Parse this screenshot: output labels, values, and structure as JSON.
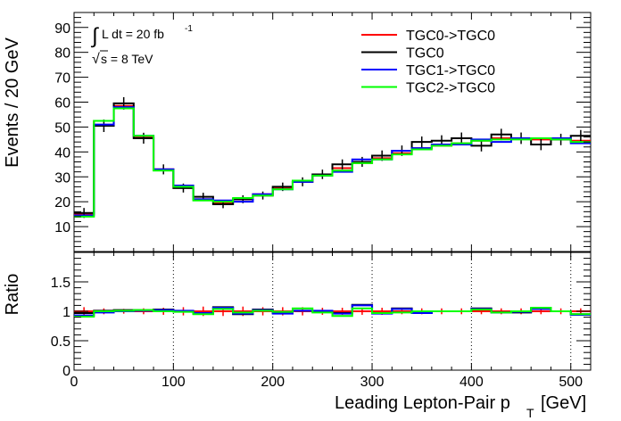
{
  "chart_data": {
    "type": "line",
    "x_edges": [
      0,
      20,
      40,
      60,
      80,
      100,
      120,
      140,
      160,
      180,
      200,
      220,
      240,
      260,
      280,
      300,
      320,
      340,
      360,
      380,
      400,
      420,
      440,
      460,
      480,
      500,
      520
    ],
    "xlim": [
      0,
      520
    ],
    "xlabel_main": "Leading Lepton-Pair p",
    "xlabel_sub": "T",
    "xlabel_unit": "[GeV]",
    "x_ticks": [
      "0",
      "100",
      "200",
      "300",
      "400",
      "500"
    ],
    "grid": "dotted vertical lines in ratio panel at x ticks and horizontal line at y = 1",
    "legend_position": "top-right",
    "annotations": {
      "lumi_integral": "∫",
      "lumi_text": "L dt = 20 fb",
      "lumi_exp": "-1",
      "sqrt_symbol": "√",
      "energy_text": "s = 8 TeV"
    },
    "top_panel": {
      "ylabel": "Events / 20 GeV",
      "ylim": [
        0,
        96
      ],
      "y_ticks": [
        "10",
        "20",
        "30",
        "40",
        "50",
        "60",
        "70",
        "80",
        "90"
      ],
      "series": [
        {
          "name": "TGC0->TGC0",
          "color": "#ff0000",
          "values": [
            15.0,
            52.5,
            58.5,
            46.0,
            33.0,
            26.0,
            21.0,
            19.5,
            21.0,
            23.0,
            25.5,
            28.0,
            30.5,
            33.5,
            35.5,
            37.5,
            39.5,
            41.5,
            42.5,
            43.5,
            44.5,
            45.5,
            45.5,
            45.0,
            45.0,
            44.5
          ]
        },
        {
          "name": "TGC0",
          "color": "#000000",
          "values": [
            15.5,
            50.5,
            59.5,
            45.5,
            33.0,
            25.5,
            22.0,
            19.0,
            21.0,
            22.5,
            26.0,
            28.0,
            31.0,
            35.0,
            36.0,
            38.5,
            40.5,
            44.0,
            44.5,
            45.5,
            42.5,
            47.0,
            45.5,
            43.0,
            45.0,
            46.5
          ],
          "errors": [
            2.0,
            2.5,
            2.5,
            2.2,
            2.0,
            1.8,
            1.6,
            1.6,
            1.6,
            1.6,
            1.7,
            1.8,
            1.9,
            2.0,
            2.0,
            2.1,
            2.1,
            2.2,
            2.2,
            2.3,
            2.3,
            2.3,
            2.3,
            2.3,
            2.3,
            2.3
          ]
        },
        {
          "name": "TGC1->TGC0",
          "color": "#0000ff",
          "values": [
            14.5,
            51.0,
            58.0,
            46.5,
            33.0,
            26.5,
            21.0,
            20.5,
            20.0,
            23.0,
            25.0,
            28.0,
            30.5,
            32.0,
            37.0,
            37.0,
            40.5,
            41.5,
            43.0,
            43.0,
            45.0,
            44.0,
            45.5,
            45.5,
            45.5,
            43.5
          ]
        },
        {
          "name": "TGC2->TGC0",
          "color": "#00ff00",
          "values": [
            14.0,
            52.5,
            57.5,
            46.5,
            32.5,
            26.0,
            20.5,
            20.0,
            21.5,
            22.5,
            25.0,
            28.5,
            30.5,
            32.5,
            35.5,
            37.0,
            39.0,
            41.0,
            42.5,
            43.5,
            44.5,
            45.0,
            45.0,
            45.5,
            45.0,
            44.0
          ]
        }
      ]
    },
    "ratio_panel": {
      "ylabel": "Ratio",
      "ylim": [
        0,
        2
      ],
      "y_ticks": [
        "0",
        "0.5",
        "1",
        "1.5"
      ],
      "series": [
        {
          "name": "TGC0->TGC0",
          "color": "#ff0000",
          "values": [
            1,
            1,
            1,
            1,
            1,
            1,
            1,
            1,
            1,
            1,
            1,
            1,
            1,
            1,
            1,
            1,
            1,
            1,
            1,
            1,
            1,
            1,
            1,
            1,
            1,
            1
          ],
          "errors": [
            0.07,
            0.05,
            0.04,
            0.05,
            0.06,
            0.07,
            0.08,
            0.08,
            0.08,
            0.07,
            0.07,
            0.07,
            0.06,
            0.06,
            0.06,
            0.06,
            0.05,
            0.05,
            0.05,
            0.05,
            0.05,
            0.05,
            0.05,
            0.05,
            0.05,
            0.05
          ]
        },
        {
          "name": "TGC0",
          "color": "#000000",
          "values": [
            0.97,
            1.01,
            1.02,
            1.02,
            1.03,
            1.0,
            0.96,
            1.07,
            0.95,
            1.03,
            0.97,
            1.01,
            1.0,
            0.97,
            1.11,
            0.97,
            1.05,
            0.97,
            1.0,
            1.0,
            1.05,
            0.98,
            0.98,
            1.05,
            1.0,
            0.95
          ]
        },
        {
          "name": "TGC1->TGC0",
          "color": "#0000ff",
          "values": [
            0.93,
            0.98,
            1.0,
            1.01,
            1.02,
            1.01,
            0.97,
            1.06,
            0.96,
            1.02,
            0.96,
            1.01,
            1.01,
            0.96,
            1.1,
            0.96,
            1.04,
            0.97,
            1.0,
            1.0,
            1.04,
            0.98,
            0.99,
            1.04,
            1.0,
            0.94
          ]
        },
        {
          "name": "TGC2->TGC0",
          "color": "#00ff00",
          "values": [
            0.91,
            1.0,
            1.01,
            1.02,
            1.0,
            0.99,
            0.95,
            1.04,
            0.98,
            1.01,
            0.99,
            1.05,
            0.98,
            0.92,
            1.05,
            0.97,
            0.98,
            1.0,
            1.0,
            1.0,
            1.03,
            0.98,
            1.0,
            1.06,
            1.0,
            0.95
          ]
        }
      ]
    }
  }
}
